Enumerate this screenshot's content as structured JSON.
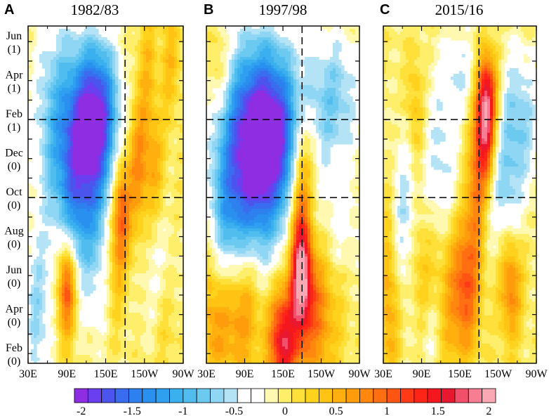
{
  "chart_data": [
    {
      "type": "heatmap",
      "panel": "A",
      "title": "1982/83",
      "x_tick_labels": [
        "30E",
        "90E",
        "150E",
        "150W",
        "90W"
      ],
      "x_values_deg_east": [
        30,
        90,
        150,
        210,
        270
      ],
      "xlim": [
        30,
        270
      ],
      "y_tick_labels": [
        [
          "Jun",
          "(1)"
        ],
        [
          "Apr",
          "(1)"
        ],
        [
          "Feb",
          "(1)"
        ],
        [
          "Dec",
          "(0)"
        ],
        [
          "Oct",
          "(0)"
        ],
        [
          "Aug",
          "(0)"
        ],
        [
          "Jun",
          "(0)"
        ],
        [
          "Apr",
          "(0)"
        ],
        [
          "Feb",
          "(0)"
        ]
      ],
      "reference_lines": {
        "vertical_deg_east": 180,
        "horizontal": [
          "Feb (1)",
          "Oct (0)"
        ]
      },
      "features": [
        {
          "x": 140,
          "month": 13.5,
          "value": -1.2,
          "sx": 22,
          "sy": 2.5
        },
        {
          "x": 115,
          "month": 12.5,
          "value": -0.9,
          "sx": 30,
          "sy": 3.0
        },
        {
          "x": 70,
          "month": 13.0,
          "value": -0.6,
          "sx": 25,
          "sy": 4.0
        },
        {
          "x": 120,
          "month": 10.5,
          "value": -0.6,
          "sx": 25,
          "sy": 3.0
        },
        {
          "x": 100,
          "month": 8.0,
          "value": -0.5,
          "sx": 20,
          "sy": 3.0
        },
        {
          "x": 45,
          "month": 3.0,
          "value": -0.6,
          "sx": 15,
          "sy": 3.0
        },
        {
          "x": 140,
          "month": 6.0,
          "value": -0.4,
          "sx": 20,
          "sy": 3.0
        },
        {
          "x": 230,
          "month": 4.5,
          "value": -0.3,
          "sx": 20,
          "sy": 3.0
        },
        {
          "x": 90,
          "month": 4.5,
          "value": 1.3,
          "sx": 10,
          "sy": 1.8
        },
        {
          "x": 175,
          "month": 8.5,
          "value": 0.9,
          "sx": 10,
          "sy": 2.0
        },
        {
          "x": 165,
          "month": 6.0,
          "value": 0.5,
          "sx": 12,
          "sy": 2.5
        },
        {
          "x": 200,
          "month": 10.5,
          "value": 0.7,
          "sx": 10,
          "sy": 2.5
        },
        {
          "x": 225,
          "month": 10.5,
          "value": 0.5,
          "sx": 12,
          "sy": 2.0
        },
        {
          "x": 250,
          "month": 16.0,
          "value": 0.4,
          "sx": 10,
          "sy": 2.0
        },
        {
          "x": 215,
          "month": 15.5,
          "value": 0.4,
          "sx": 10,
          "sy": 2.5
        },
        {
          "x": 240,
          "month": 2.5,
          "value": 0.3,
          "sx": 15,
          "sy": 2.0
        }
      ]
    },
    {
      "type": "heatmap",
      "panel": "B",
      "title": "1997/98",
      "x_tick_labels": [
        "30E",
        "90E",
        "150E",
        "150W",
        "90W"
      ],
      "x_values_deg_east": [
        30,
        90,
        150,
        210,
        270
      ],
      "xlim": [
        30,
        270
      ],
      "y_tick_labels": [
        [
          "Jun",
          "(1)"
        ],
        [
          "Apr",
          "(1)"
        ],
        [
          "Feb",
          "(1)"
        ],
        [
          "Dec",
          "(0)"
        ],
        [
          "Oct",
          "(0)"
        ],
        [
          "Aug",
          "(0)"
        ],
        [
          "Jun",
          "(0)"
        ],
        [
          "Apr",
          "(0)"
        ],
        [
          "Feb",
          "(0)"
        ]
      ],
      "reference_lines": {
        "vertical_deg_east": 180,
        "horizontal": [
          "Feb (1)",
          "Oct (0)"
        ]
      },
      "features": [
        {
          "x": 130,
          "month": 12.0,
          "value": -1.2,
          "sx": 35,
          "sy": 2.5
        },
        {
          "x": 120,
          "month": 14.0,
          "value": -0.9,
          "sx": 40,
          "sy": 3.0
        },
        {
          "x": 80,
          "month": 10.0,
          "value": -0.8,
          "sx": 30,
          "sy": 3.5
        },
        {
          "x": 120,
          "month": 9.0,
          "value": -0.7,
          "sx": 30,
          "sy": 3.0
        },
        {
          "x": 60,
          "month": 7.0,
          "value": -0.6,
          "sx": 20,
          "sy": 3.0
        },
        {
          "x": 230,
          "month": 14.0,
          "value": -0.7,
          "sx": 30,
          "sy": 2.5
        },
        {
          "x": 240,
          "month": 7.5,
          "value": -0.3,
          "sx": 25,
          "sy": 2.0
        },
        {
          "x": 150,
          "month": 1.5,
          "value": 1.5,
          "sx": 15,
          "sy": 2.0
        },
        {
          "x": 180,
          "month": 5.0,
          "value": 1.4,
          "sx": 12,
          "sy": 2.0
        },
        {
          "x": 80,
          "month": 3.5,
          "value": 0.9,
          "sx": 25,
          "sy": 2.5
        },
        {
          "x": 200,
          "month": 3.0,
          "value": 0.8,
          "sx": 25,
          "sy": 2.5
        },
        {
          "x": 175,
          "month": 8.0,
          "value": 0.7,
          "sx": 10,
          "sy": 3.0
        },
        {
          "x": 185,
          "month": 11.0,
          "value": 0.6,
          "sx": 12,
          "sy": 2.0
        },
        {
          "x": 50,
          "month": 15.5,
          "value": 0.4,
          "sx": 10,
          "sy": 1.5
        },
        {
          "x": 40,
          "month": 3.0,
          "value": 0.5,
          "sx": 15,
          "sy": 3.0
        }
      ]
    },
    {
      "type": "heatmap",
      "panel": "C",
      "title": "2015/16",
      "x_tick_labels": [
        "30E",
        "90E",
        "150E",
        "150W",
        "90W"
      ],
      "x_values_deg_east": [
        30,
        90,
        150,
        210,
        270
      ],
      "xlim": [
        30,
        270
      ],
      "y_tick_labels": [
        [
          "Jun",
          "(1)"
        ],
        [
          "Apr",
          "(1)"
        ],
        [
          "Feb",
          "(1)"
        ],
        [
          "Dec",
          "(0)"
        ],
        [
          "Oct",
          "(0)"
        ],
        [
          "Aug",
          "(0)"
        ],
        [
          "Jun",
          "(0)"
        ],
        [
          "Apr",
          "(0)"
        ],
        [
          "Feb",
          "(0)"
        ]
      ],
      "reference_lines": {
        "vertical_deg_east": 180,
        "horizontal": [
          "Feb (1)",
          "Oct (0)"
        ]
      },
      "features": [
        {
          "x": 190,
          "month": 12.5,
          "value": 1.6,
          "sx": 10,
          "sy": 2.0
        },
        {
          "x": 195,
          "month": 14.5,
          "value": 0.9,
          "sx": 12,
          "sy": 1.5
        },
        {
          "x": 175,
          "month": 9.5,
          "value": 0.7,
          "sx": 10,
          "sy": 2.5
        },
        {
          "x": 160,
          "month": 4.5,
          "value": 1.0,
          "sx": 15,
          "sy": 2.5
        },
        {
          "x": 230,
          "month": 4.5,
          "value": 0.8,
          "sx": 12,
          "sy": 2.0
        },
        {
          "x": 130,
          "month": 3.0,
          "value": 0.5,
          "sx": 15,
          "sy": 3.0
        },
        {
          "x": 90,
          "month": 4.0,
          "value": 0.5,
          "sx": 15,
          "sy": 3.0
        },
        {
          "x": 40,
          "month": 4.0,
          "value": 0.6,
          "sx": 12,
          "sy": 4.0
        },
        {
          "x": 80,
          "month": 13.5,
          "value": 0.4,
          "sx": 10,
          "sy": 2.0
        },
        {
          "x": 60,
          "month": 8.0,
          "value": -0.6,
          "sx": 15,
          "sy": 3.0
        },
        {
          "x": 120,
          "month": 11.0,
          "value": -0.5,
          "sx": 20,
          "sy": 3.0
        },
        {
          "x": 240,
          "month": 13.0,
          "value": -0.7,
          "sx": 25,
          "sy": 2.5
        },
        {
          "x": 220,
          "month": 9.0,
          "value": -0.5,
          "sx": 20,
          "sy": 2.0
        },
        {
          "x": 100,
          "month": 2.0,
          "value": -0.5,
          "sx": 20,
          "sy": 2.0
        },
        {
          "x": 150,
          "month": 15.5,
          "value": -0.4,
          "sx": 20,
          "sy": 1.5
        }
      ]
    }
  ],
  "colorbar": {
    "min": -2,
    "max": 2,
    "tick_values": [
      -2,
      -1.5,
      -1,
      -0.5,
      0,
      0.5,
      1,
      1.5,
      2
    ],
    "tick_labels": [
      "-2",
      "-1.5",
      "-1",
      "-0.5",
      "0",
      "0.5",
      "1",
      "1.5",
      "2"
    ],
    "colors": [
      "#8e2de2",
      "#6a3ff0",
      "#4b55ee",
      "#3a6cef",
      "#2f80ef",
      "#2a90ef",
      "#2ea0ef",
      "#3ab0ee",
      "#50bdee",
      "#6cc9f0",
      "#8ed6f3",
      "#b4e3f6",
      "#ffffff",
      "#ffffff",
      "#fff8b0",
      "#ffee6a",
      "#ffe03a",
      "#ffd21e",
      "#ffc314",
      "#ffb00e",
      "#ff9c0c",
      "#ff870d",
      "#ff6e10",
      "#ff5513",
      "#ff3a16",
      "#ff2418",
      "#f4181e",
      "#e81830",
      "#f2506a",
      "#f77e92",
      "#f9a8b4"
    ]
  }
}
